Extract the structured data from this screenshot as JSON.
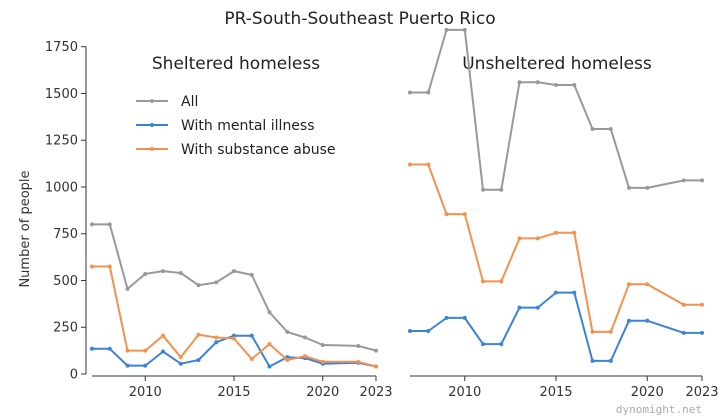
{
  "figure_title": "PR-South-Southeast Puerto Rico",
  "watermark": "dynomight.net",
  "ylabel": "Number of people",
  "legend": {
    "placement": "upper-left of left panel",
    "entries": [
      "All",
      "With mental illness",
      "With substance abuse"
    ]
  },
  "colors": {
    "all": "#999999",
    "mental": "#3b83d6",
    "substance": "#f5914e"
  },
  "chart_data": [
    {
      "type": "line",
      "title": "Sheltered homeless",
      "xlim": [
        2007,
        2023
      ],
      "ylim": [
        0,
        1850
      ],
      "xticks": [
        "2010",
        "2015",
        "2020",
        "2023"
      ],
      "yticks": [
        "0",
        "250",
        "500",
        "750",
        "1000",
        "1250",
        "1500",
        "1750"
      ],
      "x": [
        2007,
        2008,
        2009,
        2010,
        2011,
        2012,
        2013,
        2014,
        2015,
        2016,
        2017,
        2018,
        2019,
        2020,
        2022,
        2023
      ],
      "series": [
        {
          "name": "All",
          "values": [
            800,
            800,
            455,
            535,
            550,
            540,
            475,
            490,
            550,
            530,
            330,
            225,
            195,
            155,
            150,
            125
          ]
        },
        {
          "name": "With mental illness",
          "values": [
            135,
            135,
            45,
            45,
            120,
            55,
            75,
            170,
            205,
            205,
            40,
            90,
            85,
            55,
            60,
            40
          ]
        },
        {
          "name": "With substance abuse",
          "values": [
            575,
            575,
            125,
            125,
            205,
            90,
            210,
            195,
            190,
            80,
            160,
            75,
            95,
            65,
            65,
            40
          ]
        }
      ]
    },
    {
      "type": "line",
      "title": "Unsheltered homeless",
      "xlim": [
        2007,
        2023
      ],
      "ylim": [
        0,
        1850
      ],
      "xticks": [
        "2010",
        "2015",
        "2020",
        "2023"
      ],
      "yticks": [],
      "x": [
        2007,
        2008,
        2009,
        2010,
        2011,
        2012,
        2013,
        2014,
        2015,
        2016,
        2017,
        2018,
        2019,
        2020,
        2022,
        2023
      ],
      "series": [
        {
          "name": "All",
          "values": [
            1505,
            1505,
            1840,
            1840,
            985,
            985,
            1560,
            1560,
            1545,
            1545,
            1310,
            1310,
            995,
            995,
            1035,
            1035
          ]
        },
        {
          "name": "With mental illness",
          "values": [
            230,
            230,
            300,
            300,
            160,
            160,
            355,
            355,
            435,
            435,
            70,
            70,
            285,
            285,
            220,
            220
          ]
        },
        {
          "name": "With substance abuse",
          "values": [
            1120,
            1120,
            855,
            855,
            495,
            495,
            725,
            725,
            755,
            755,
            225,
            225,
            480,
            480,
            370,
            370
          ]
        }
      ]
    }
  ]
}
